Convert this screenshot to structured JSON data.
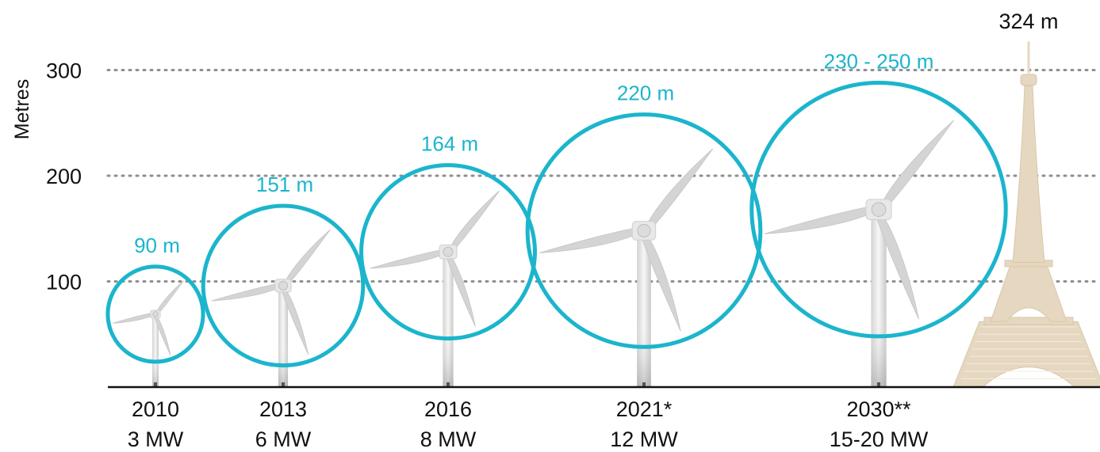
{
  "chart_data": {
    "type": "bubble",
    "ylabel": "Metres",
    "yticks": [
      100,
      200,
      300
    ],
    "ylim": [
      0,
      330
    ],
    "grid": "dotted horizontal",
    "accent_color": "#1bb5cc",
    "tower_color": "#e6d7c0",
    "items": [
      {
        "year": "2010",
        "capacity": "3 MW",
        "hub_height": 69,
        "rotor_diameter": 90,
        "diameter_label": "90 m"
      },
      {
        "year": "2013",
        "capacity": "6 MW",
        "hub_height": 96,
        "rotor_diameter": 151,
        "diameter_label": "151 m"
      },
      {
        "year": "2016",
        "capacity": "8 MW",
        "hub_height": 128,
        "rotor_diameter": 164,
        "diameter_label": "164 m"
      },
      {
        "year": "2021*",
        "capacity": "12 MW",
        "hub_height": 148,
        "rotor_diameter": 220,
        "diameter_label": "220 m"
      },
      {
        "year": "2030**",
        "capacity": "15-20 MW",
        "hub_height": 168,
        "rotor_diameter": 240,
        "diameter_label": "230 - 250 m"
      }
    ],
    "reference": {
      "name_icon": "eiffel-tower-icon",
      "height": 324,
      "height_label": "324 m"
    }
  }
}
